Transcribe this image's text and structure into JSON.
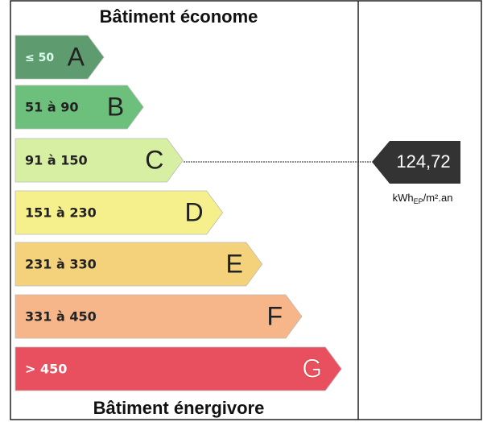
{
  "header": {
    "title": "Bâtiment économe"
  },
  "classes": [
    {
      "range": "≤ 50",
      "letter": "A"
    },
    {
      "range": "51 à 90",
      "letter": "B"
    },
    {
      "range": "91 à 150",
      "letter": "C"
    },
    {
      "range": "151 à 230",
      "letter": "D"
    },
    {
      "range": "231 à 330",
      "letter": "E"
    },
    {
      "range": "331 à 450",
      "letter": "F"
    },
    {
      "range": "> 450",
      "letter": "G"
    }
  ],
  "footer": {
    "title": "Bâtiment énergivore"
  },
  "result": {
    "value": "124,72",
    "unit_main": "kWh",
    "unit_sub": "EP",
    "unit_rest": "/m².an"
  }
}
